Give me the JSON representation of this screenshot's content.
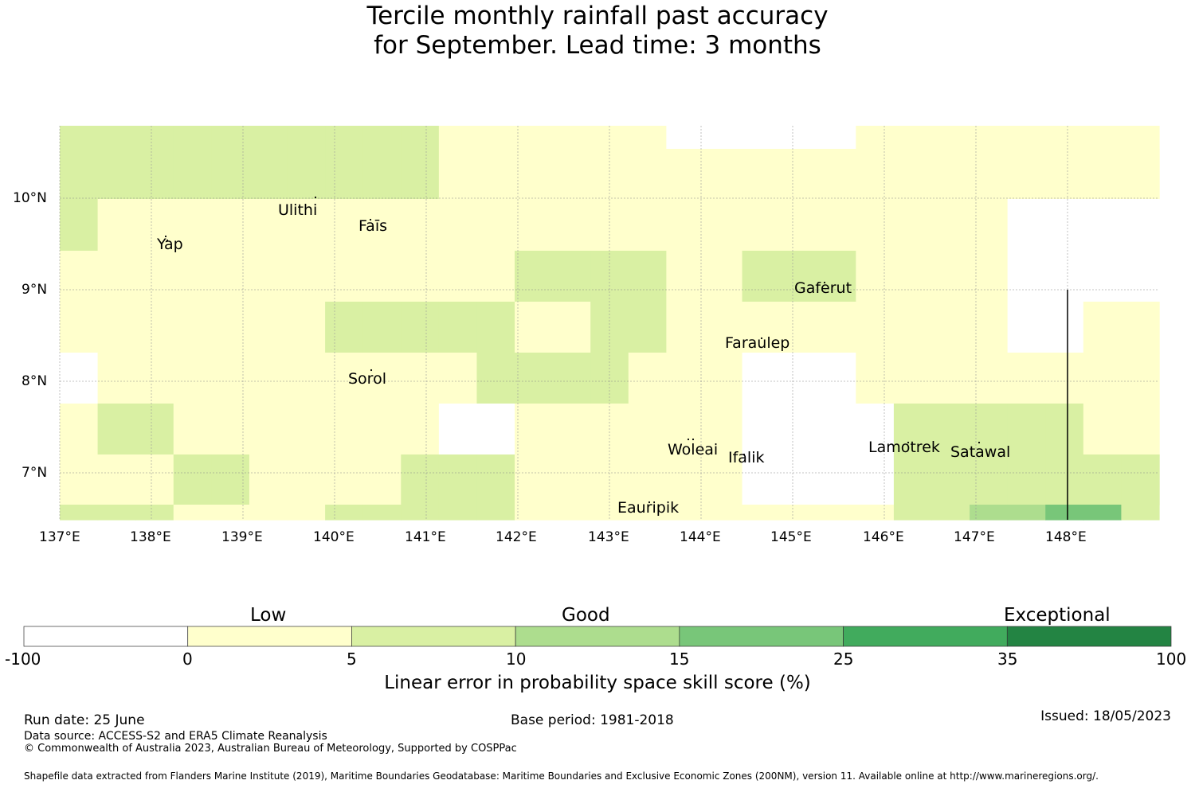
{
  "title": {
    "line1": "Tercile monthly rainfall past accuracy",
    "line2": "for September. Lead time: 3 months"
  },
  "map": {
    "lon_min": 137,
    "lon_max": 149,
    "lat_min": 6.5,
    "lat_max": 10.8,
    "lon_ticks": [
      "137°E",
      "138°E",
      "139°E",
      "140°E",
      "141°E",
      "142°E",
      "143°E",
      "144°E",
      "145°E",
      "146°E",
      "147°E",
      "148°E"
    ],
    "lat_ticks": [
      "10°N",
      "9°N",
      "8°N",
      "7°N"
    ],
    "places": [
      {
        "name": "Ulithi"
      },
      {
        "name": "Yap"
      },
      {
        "name": "Faīs"
      },
      {
        "name": "Gaferut"
      },
      {
        "name": "Faraulep"
      },
      {
        "name": "Sorol"
      },
      {
        "name": "Woleai"
      },
      {
        "name": "Ifalik"
      },
      {
        "name": "Lamotrek"
      },
      {
        "name": "Satawal"
      },
      {
        "name": "Eauripik"
      }
    ],
    "grid_values": [
      [
        "Y",
        "Y",
        "Y",
        "Y",
        "Y",
        "Y",
        "Y",
        "Y",
        "Y",
        "Y",
        "L",
        "L",
        "L",
        "L",
        "L",
        "L",
        "W",
        "W",
        "W",
        "W",
        "W",
        "L",
        "L",
        "L",
        "L",
        "L",
        "L",
        "L",
        "L"
      ],
      [
        "Y",
        "Y",
        "Y",
        "Y",
        "Y",
        "Y",
        "Y",
        "Y",
        "Y",
        "Y",
        "L",
        "L",
        "L",
        "L",
        "L",
        "L",
        "L",
        "L",
        "L",
        "L",
        "L",
        "L",
        "L",
        "L",
        "L",
        "L",
        "L",
        "L",
        "L"
      ],
      [
        "Y",
        "Y",
        "Y",
        "Y",
        "Y",
        "Y",
        "Y",
        "Y",
        "Y",
        "Y",
        "L",
        "L",
        "L",
        "L",
        "L",
        "L",
        "L",
        "L",
        "L",
        "L",
        "L",
        "L",
        "L",
        "L",
        "L",
        "L",
        "L",
        "L",
        "L"
      ],
      [
        "Y",
        "L",
        "L",
        "L",
        "L",
        "L",
        "L",
        "L",
        "L",
        "L",
        "L",
        "L",
        "L",
        "L",
        "L",
        "L",
        "L",
        "L",
        "L",
        "L",
        "L",
        "L",
        "L",
        "L",
        "L",
        "W",
        "W",
        "W",
        "W"
      ],
      [
        "Y",
        "L",
        "L",
        "L",
        "L",
        "L",
        "L",
        "L",
        "L",
        "L",
        "L",
        "L",
        "L",
        "L",
        "L",
        "L",
        "L",
        "L",
        "L",
        "L",
        "L",
        "L",
        "L",
        "L",
        "L",
        "W",
        "W",
        "W",
        "W"
      ],
      [
        "L",
        "L",
        "L",
        "L",
        "L",
        "L",
        "L",
        "L",
        "L",
        "L",
        "L",
        "L",
        "Y",
        "Y",
        "Y",
        "Y",
        "L",
        "L",
        "Y",
        "Y",
        "Y",
        "L",
        "L",
        "L",
        "L",
        "W",
        "W",
        "W",
        "W"
      ],
      [
        "L",
        "L",
        "L",
        "L",
        "L",
        "L",
        "L",
        "L",
        "L",
        "L",
        "L",
        "L",
        "Y",
        "Y",
        "Y",
        "Y",
        "L",
        "L",
        "Y",
        "Y",
        "Y",
        "L",
        "L",
        "L",
        "L",
        "W",
        "W",
        "W",
        "W"
      ],
      [
        "L",
        "L",
        "L",
        "L",
        "L",
        "L",
        "L",
        "Y",
        "Y",
        "Y",
        "Y",
        "Y",
        "L",
        "L",
        "Y",
        "Y",
        "L",
        "L",
        "L",
        "L",
        "L",
        "L",
        "L",
        "L",
        "L",
        "W",
        "W",
        "L",
        "L"
      ],
      [
        "L",
        "L",
        "L",
        "L",
        "L",
        "L",
        "L",
        "Y",
        "Y",
        "Y",
        "Y",
        "Y",
        "L",
        "L",
        "Y",
        "Y",
        "L",
        "L",
        "L",
        "L",
        "L",
        "L",
        "L",
        "L",
        "L",
        "W",
        "W",
        "L",
        "L"
      ],
      [
        "W",
        "L",
        "L",
        "L",
        "L",
        "L",
        "L",
        "L",
        "L",
        "L",
        "L",
        "Y",
        "Y",
        "Y",
        "Y",
        "L",
        "L",
        "L",
        "W",
        "W",
        "W",
        "L",
        "L",
        "L",
        "L",
        "L",
        "L",
        "L",
        "L"
      ],
      [
        "W",
        "L",
        "L",
        "L",
        "L",
        "L",
        "L",
        "L",
        "L",
        "L",
        "L",
        "Y",
        "Y",
        "Y",
        "Y",
        "L",
        "L",
        "L",
        "W",
        "W",
        "W",
        "L",
        "L",
        "L",
        "L",
        "L",
        "L",
        "L",
        "L"
      ],
      [
        "L",
        "Y",
        "Y",
        "L",
        "L",
        "L",
        "L",
        "L",
        "L",
        "L",
        "W",
        "W",
        "L",
        "L",
        "L",
        "L",
        "L",
        "L",
        "W",
        "W",
        "W",
        "W",
        "Y",
        "Y",
        "Y",
        "Y",
        "Y",
        "L",
        "L"
      ],
      [
        "L",
        "Y",
        "Y",
        "L",
        "L",
        "L",
        "L",
        "L",
        "L",
        "L",
        "W",
        "W",
        "L",
        "L",
        "L",
        "L",
        "L",
        "L",
        "W",
        "W",
        "W",
        "W",
        "Y",
        "Y",
        "Y",
        "Y",
        "Y",
        "L",
        "L"
      ],
      [
        "L",
        "L",
        "L",
        "Y",
        "Y",
        "L",
        "L",
        "L",
        "L",
        "Y",
        "Y",
        "Y",
        "L",
        "L",
        "L",
        "L",
        "L",
        "L",
        "W",
        "W",
        "W",
        "W",
        "Y",
        "Y",
        "Y",
        "Y",
        "Y",
        "Y",
        "Y"
      ],
      [
        "L",
        "L",
        "L",
        "Y",
        "Y",
        "L",
        "L",
        "L",
        "L",
        "Y",
        "Y",
        "Y",
        "L",
        "L",
        "L",
        "L",
        "L",
        "L",
        "W",
        "W",
        "W",
        "W",
        "Y",
        "Y",
        "Y",
        "Y",
        "Y",
        "Y",
        "Y"
      ],
      [
        "Y",
        "Y",
        "Y",
        "L",
        "L",
        "L",
        "L",
        "Y",
        "Y",
        "Y",
        "Y",
        "Y",
        "L",
        "L",
        "L",
        "L",
        "L",
        "L",
        "L",
        "L",
        "L",
        "L",
        "Y",
        "Y",
        "G",
        "G",
        "M",
        "M",
        "Y"
      ]
    ],
    "category_colors": {
      "W": "#ffffff",
      "L": "#ffffcc",
      "Y": "#d9f0a3",
      "G": "#addd8e",
      "M": "#78c679"
    },
    "marker_line_lon": 148
  },
  "legend": {
    "category_labels": [
      "Low",
      "Good",
      "Exceptional"
    ],
    "bins": [
      {
        "from": -100,
        "to": 0,
        "color": "#ffffff"
      },
      {
        "from": 0,
        "to": 5,
        "color": "#ffffcc"
      },
      {
        "from": 5,
        "to": 10,
        "color": "#d9f0a3"
      },
      {
        "from": 10,
        "to": 15,
        "color": "#addd8e"
      },
      {
        "from": 15,
        "to": 25,
        "color": "#78c679"
      },
      {
        "from": 25,
        "to": 35,
        "color": "#41ab5d"
      },
      {
        "from": 35,
        "to": 100,
        "color": "#238443"
      }
    ],
    "tick_labels": [
      "-100",
      "0",
      "5",
      "10",
      "15",
      "25",
      "35",
      "100"
    ],
    "axis_label": "Linear error in probability space skill score (%)"
  },
  "footer": {
    "run_date": "Run date: 25 June",
    "base_period": "Base period: 1981-2018",
    "issued": "Issued: 18/05/2023",
    "data_source": "Data source: ACCESS-S2 and ERA5 Climate Reanalysis",
    "copyright": "© Commonwealth of Australia 2023, Australian Bureau of Meteorology, Supported by COSPPac",
    "shapefile": "Shapefile data extracted from Flanders Marine Institute (2019), Maritime Boundaries Geodatabase: Maritime Boundaries and Exclusive Economic Zones (200NM), version 11. Available online at http://www.marineregions.org/."
  }
}
